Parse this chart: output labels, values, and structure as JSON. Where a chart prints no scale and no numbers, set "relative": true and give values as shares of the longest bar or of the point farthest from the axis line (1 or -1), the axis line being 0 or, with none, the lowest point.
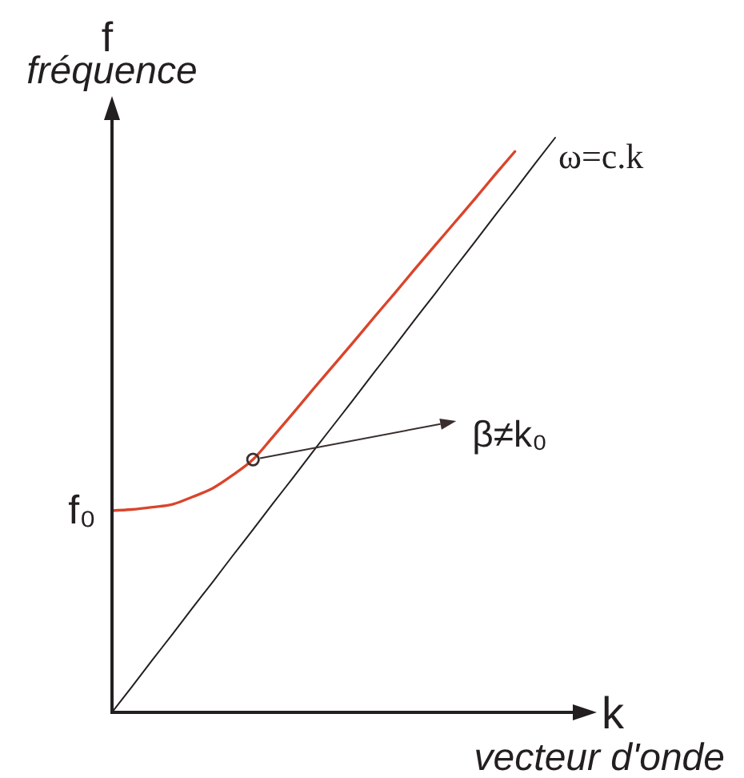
{
  "chart_data": {
    "type": "line",
    "relative": true,
    "xlabel": "k\nvecteur d'onde",
    "ylabel": "f\nfréquence",
    "categories": [
      null,
      null,
      null,
      null,
      null,
      null,
      null,
      null,
      null,
      null,
      null,
      null,
      null,
      null,
      null,
      null,
      null,
      null,
      null,
      null,
      null,
      null,
      null
    ],
    "series": [
      {
        "color": "#d9452b",
        "values": [
          0.351,
          0.353,
          0.357,
          0.362,
          0.375,
          0.39,
          0.413,
          0.44,
          0.48,
          0.521,
          0.563,
          0.604,
          0.645,
          0.687,
          0.728,
          0.77,
          0.811,
          0.852,
          0.893,
          0.935,
          0.976,
          null,
          null
        ]
      },
      {
        "name": "ω=c.k",
        "color": "#231f20",
        "values": [
          0,
          0.045,
          0.091,
          0.136,
          0.182,
          0.227,
          0.273,
          0.318,
          0.364,
          0.409,
          0.455,
          0.5,
          0.545,
          0.591,
          0.636,
          0.682,
          0.727,
          0.773,
          0.818,
          0.864,
          0.909,
          0.955,
          1
        ]
      }
    ],
    "annotations": [
      "f₀",
      "β≠k₀"
    ]
  }
}
